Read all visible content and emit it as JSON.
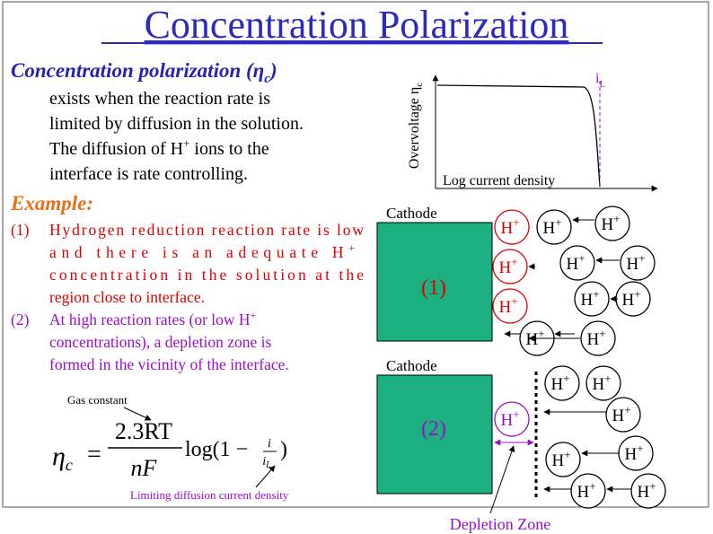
{
  "header": {
    "title": "Concentration Polarization"
  },
  "intro": {
    "heading": "Concentration polarization (η",
    "heading_sub": "c",
    "heading_close": ")",
    "lines": [
      {
        "text": "exists when the reaction rate is"
      },
      {
        "text": "limited by diffusion in the solution."
      },
      {
        "text": "The diffusion of H",
        "sup": "+",
        "rest": " ions to the"
      },
      {
        "text": "interface is rate controlling."
      }
    ]
  },
  "example": {
    "heading": "Example:",
    "items": [
      {
        "number": "(1)",
        "lines": [
          {
            "text": "Hydrogen reduction reaction rate is low"
          },
          {
            "text": "and there is an adequate H",
            "sup": "+"
          },
          {
            "text": "concentration in the solution at the"
          },
          {
            "text": "region close to interface."
          }
        ]
      },
      {
        "number": "(2)",
        "lines": [
          {
            "text": "At high reaction rates (or low H",
            "sup": "+"
          },
          {
            "text": "concentrations), a depletion zone is"
          },
          {
            "text": "formed in the vicinity of the interface."
          }
        ]
      }
    ]
  },
  "equation": {
    "eta": "η",
    "eta_sub": "c",
    "equals": "=",
    "numerator": "2.3RT",
    "denominator": "nF",
    "log": "log(1 −",
    "frac_num": "i",
    "frac_den": "i",
    "frac_den_sub": "L",
    "close": ")",
    "gas_note": "Gas constant",
    "limit_note": "Limiting diffusion current density"
  },
  "graph": {
    "y_label": "Overvoltage η",
    "y_label_sub": "c",
    "x_label": "Log current density",
    "limit_label": "i",
    "limit_label_sub": "L"
  },
  "diagram": {
    "cathode1": "Cathode",
    "label1": "(1)",
    "cathode2": "Cathode",
    "label2": "(2)",
    "depletion": "Depletion Zone",
    "ion": {
      "base": "H",
      "charge": "+"
    }
  }
}
